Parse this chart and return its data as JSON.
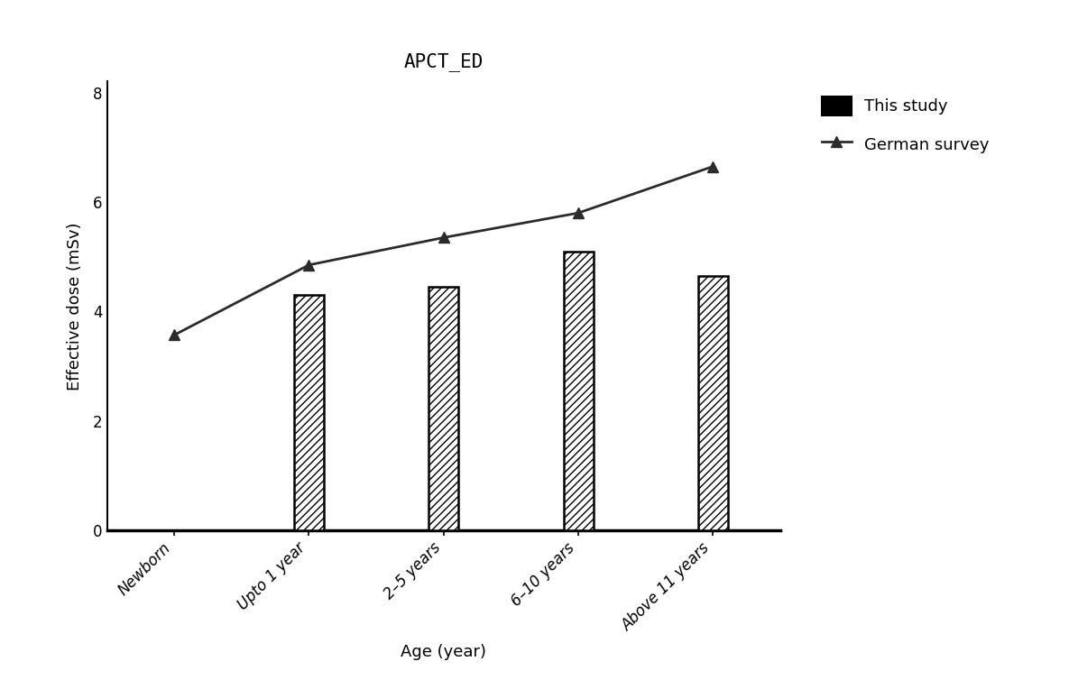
{
  "title": "APCT_ED",
  "xlabel": "Age (year)",
  "ylabel": "Effective dose (mSv)",
  "categories": [
    "Newborn",
    "Upto 1 year",
    "2–5 years",
    "6–10 years",
    "Above 11 years"
  ],
  "bar_values": [
    0,
    4.3,
    4.45,
    5.1,
    4.65
  ],
  "line_values": [
    3.57,
    4.85,
    5.35,
    5.8,
    6.65
  ],
  "ylim": [
    0,
    8.2
  ],
  "yticks": [
    0,
    2,
    4,
    6,
    8
  ],
  "bar_color": "#000000",
  "line_color": "#2b2b2b",
  "hatch_pattern": "////",
  "legend_labels": [
    "This study",
    "German survey"
  ],
  "title_fontsize": 15,
  "axis_fontsize": 13,
  "tick_fontsize": 12,
  "background_color": "#ffffff",
  "bar_width": 0.22
}
